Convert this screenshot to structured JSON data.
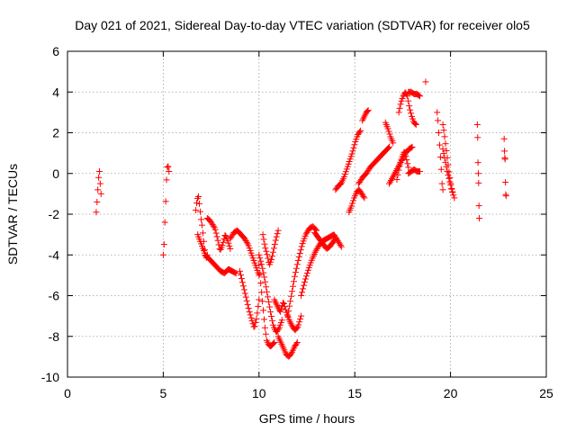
{
  "chart_data": {
    "type": "scatter",
    "title": "Day 021 of 2021, Sidereal Day-to-day VTEC variation (SDTVAR) for receiver olo5",
    "xlabel": "GPS time / hours",
    "ylabel": "SDTVAR / TECUs",
    "xlim": [
      0,
      25
    ],
    "ylim": [
      -10,
      6
    ],
    "xticks": [
      0,
      5,
      10,
      15,
      20,
      25
    ],
    "yticks": [
      -10,
      -8,
      -6,
      -4,
      -2,
      0,
      2,
      4,
      6
    ],
    "grid": true,
    "marker": "+",
    "color": "#ff0000",
    "series": [
      {
        "segments": [
          {
            "x0": 1.5,
            "x1": 1.75,
            "y": [
              -1.9,
              -1.6,
              -1.2,
              -0.8,
              -0.4,
              0.0,
              0.1,
              -0.3,
              -0.7,
              -1.0
            ]
          },
          {
            "x0": 5.0,
            "x1": 5.3,
            "y": [
              -4.0,
              -3.6,
              -3.2,
              -1.8,
              -1.3,
              -0.4,
              0.2,
              0.45,
              0.3,
              0.1
            ]
          },
          {
            "x0": 6.7,
            "x1": 7.3,
            "y": [
              -1.8,
              -1.3,
              -1.1,
              -1.6,
              -2.2,
              -2.6,
              -3.2,
              -3.8,
              -4.2,
              -4.0
            ]
          },
          {
            "x0": 6.8,
            "x1": 8.8,
            "y": [
              -3.0,
              -3.5,
              -4.0,
              -4.2,
              -4.4,
              -4.6,
              -4.8,
              -4.9,
              -4.7,
              -4.8,
              -4.9
            ]
          },
          {
            "x0": 7.3,
            "x1": 8.5,
            "y": [
              -2.2,
              -2.3,
              -2.5,
              -2.7,
              -3.2,
              -3.8,
              -3.5,
              -3.0,
              -3.3,
              -3.7
            ]
          },
          {
            "x0": 8.5,
            "x1": 10.0,
            "y": [
              -3.2,
              -2.9,
              -2.8,
              -3.0,
              -3.2,
              -3.5,
              -4.0,
              -4.5,
              -5.0
            ]
          },
          {
            "x0": 9.0,
            "x1": 10.0,
            "y": [
              -4.8,
              -5.3,
              -5.8,
              -6.3,
              -6.8,
              -7.2,
              -7.6,
              -7.1,
              -6.2
            ]
          },
          {
            "x0": 10.0,
            "x1": 10.8,
            "y": [
              -4.5,
              -5.5,
              -6.5,
              -7.5,
              -8.2,
              -8.4,
              -8.5,
              -8.4,
              -8.3
            ]
          },
          {
            "x0": 10.0,
            "x1": 11.2,
            "y": [
              -4.0,
              -4.5,
              -5.2,
              -6.0,
              -6.8,
              -7.5,
              -7.8,
              -7.6,
              -7.2
            ]
          },
          {
            "x0": 10.2,
            "x1": 11.0,
            "y": [
              -3.0,
              -3.6,
              -4.0,
              -4.5,
              -4.2,
              -3.7,
              -3.2,
              -2.8
            ]
          },
          {
            "x0": 10.8,
            "x1": 12.2,
            "y": [
              -6.2,
              -6.5,
              -6.8,
              -6.3,
              -6.8,
              -7.2,
              -7.5,
              -7.7,
              -7.5,
              -7.0
            ]
          },
          {
            "x0": 11.0,
            "x1": 12.0,
            "y": [
              -8.0,
              -8.3,
              -8.6,
              -8.9,
              -9.0,
              -8.8,
              -8.5,
              -8.3
            ]
          },
          {
            "x0": 11.5,
            "x1": 13.0,
            "y": [
              -7.0,
              -6.0,
              -5.0,
              -4.2,
              -3.5,
              -3.0,
              -2.7,
              -2.6,
              -2.8
            ]
          },
          {
            "x0": 12.2,
            "x1": 14.3,
            "y": [
              -6.0,
              -5.3,
              -4.7,
              -4.2,
              -3.8,
              -3.5,
              -3.3,
              -3.2,
              -3.1,
              -3.0,
              -3.3,
              -3.6
            ]
          },
          {
            "x0": 12.9,
            "x1": 14.0,
            "y": [
              -2.9,
              -3.1,
              -3.3,
              -3.5,
              -3.7,
              -3.6,
              -3.4,
              -3.2
            ]
          },
          {
            "x0": 14.0,
            "x1": 15.3,
            "y": [
              -0.8,
              -0.6,
              -0.5,
              -0.2,
              0.2,
              0.6,
              1.0,
              1.5,
              1.9,
              2.1
            ]
          },
          {
            "x0": 14.7,
            "x1": 15.5,
            "y": [
              -1.9,
              -1.6,
              -1.2,
              -0.9,
              -0.8,
              -1.0,
              -1.2
            ]
          },
          {
            "x0": 15.2,
            "x1": 16.8,
            "y": [
              -0.5,
              -0.2,
              0.0,
              0.3,
              0.5,
              0.7,
              0.9,
              1.1,
              1.3
            ]
          },
          {
            "x0": 15.4,
            "x1": 15.7,
            "y": [
              2.6,
              2.8,
              3.0,
              3.1
            ]
          },
          {
            "x0": 16.6,
            "x1": 17.0,
            "y": [
              2.5,
              2.2,
              1.8,
              1.5
            ]
          },
          {
            "x0": 16.8,
            "x1": 18.0,
            "y": [
              -0.5,
              -0.2,
              0.1,
              0.4,
              0.7,
              1.0,
              1.2,
              1.3
            ]
          },
          {
            "x0": 17.3,
            "x1": 18.2,
            "y": [
              3.0,
              3.5,
              3.8,
              4.0,
              3.8,
              3.2,
              2.8,
              2.5,
              2.4
            ]
          },
          {
            "x0": 17.2,
            "x1": 17.8,
            "y": [
              -0.3,
              0.2,
              0.6,
              0.9,
              1.1,
              0.7,
              0.3
            ]
          },
          {
            "x0": 17.8,
            "x1": 18.4,
            "y": [
              4.0,
              4.0,
              3.9,
              3.9,
              3.8
            ]
          },
          {
            "x0": 17.8,
            "x1": 18.4,
            "y": [
              0.0,
              0.1,
              0.2,
              0.1,
              0.1
            ]
          },
          {
            "x0": 18.7,
            "x1": 18.7,
            "y": [
              4.5
            ]
          },
          {
            "x0": 19.3,
            "x1": 19.6,
            "y": [
              3.0,
              2.6,
              2.0,
              1.4,
              0.8,
              0.2,
              -0.5,
              -0.8
            ]
          },
          {
            "x0": 19.6,
            "x1": 20.2,
            "y": [
              2.4,
              2.0,
              1.5,
              1.0,
              0.5,
              0.0,
              -0.4,
              -0.8,
              -1.0,
              -1.2
            ]
          },
          {
            "x0": 19.6,
            "x1": 20.1,
            "y": [
              1.2,
              0.8,
              0.4,
              0.0,
              -0.3,
              -0.6,
              -0.9
            ]
          },
          {
            "x0": 21.4,
            "x1": 21.5,
            "y": [
              2.4,
              2.0,
              0.6,
              0.4,
              -0.4,
              -0.5,
              -1.8,
              -2.2
            ]
          },
          {
            "x0": 22.8,
            "x1": 22.9,
            "y": [
              1.7,
              0.8,
              0.7,
              -1.0,
              -1.1
            ]
          }
        ]
      }
    ]
  }
}
